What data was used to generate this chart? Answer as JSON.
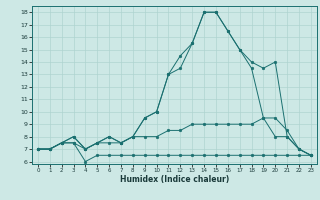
{
  "xlabel": "Humidex (Indice chaleur)",
  "xlim": [
    -0.5,
    23.5
  ],
  "ylim": [
    5.8,
    18.5
  ],
  "yticks": [
    6,
    7,
    8,
    9,
    10,
    11,
    12,
    13,
    14,
    15,
    16,
    17,
    18
  ],
  "xticks": [
    0,
    1,
    2,
    3,
    4,
    5,
    6,
    7,
    8,
    9,
    10,
    11,
    12,
    13,
    14,
    15,
    16,
    17,
    18,
    19,
    20,
    21,
    22,
    23
  ],
  "background_color": "#cde8e5",
  "line_color": "#1b7070",
  "grid_color": "#afd4d0",
  "line1_x": [
    0,
    1,
    2,
    3,
    4,
    5,
    6,
    7,
    8,
    9,
    10,
    11,
    12,
    13,
    14,
    15,
    16,
    17,
    18,
    19,
    20,
    21,
    22,
    23
  ],
  "line1_y": [
    7.0,
    7.0,
    7.5,
    7.5,
    6.0,
    6.5,
    6.5,
    6.5,
    6.5,
    6.5,
    6.5,
    6.5,
    6.5,
    6.5,
    6.5,
    6.5,
    6.5,
    6.5,
    6.5,
    6.5,
    6.5,
    6.5,
    6.5,
    6.5
  ],
  "line2_x": [
    0,
    1,
    2,
    3,
    4,
    5,
    6,
    7,
    8,
    9,
    10,
    11,
    12,
    13,
    14,
    15,
    16,
    17,
    18,
    19,
    20,
    21,
    22,
    23
  ],
  "line2_y": [
    7.0,
    7.0,
    7.5,
    7.5,
    7.0,
    7.5,
    7.5,
    7.5,
    8.0,
    8.0,
    8.0,
    8.5,
    8.5,
    9.0,
    9.0,
    9.0,
    9.0,
    9.0,
    9.0,
    9.5,
    9.5,
    8.5,
    7.0,
    6.5
  ],
  "line3_x": [
    0,
    1,
    2,
    3,
    4,
    5,
    6,
    7,
    8,
    9,
    10,
    11,
    12,
    13,
    14,
    15,
    16,
    17,
    18,
    19,
    20,
    21,
    22,
    23
  ],
  "line3_y": [
    7.0,
    7.0,
    7.5,
    8.0,
    7.0,
    7.5,
    8.0,
    7.5,
    8.0,
    9.5,
    10.0,
    13.0,
    13.5,
    15.5,
    18.0,
    18.0,
    16.5,
    15.0,
    14.0,
    13.5,
    14.0,
    8.0,
    7.0,
    6.5
  ],
  "line4_x": [
    0,
    1,
    2,
    3,
    4,
    5,
    6,
    7,
    8,
    9,
    10,
    11,
    12,
    13,
    14,
    15,
    16,
    17,
    18,
    19,
    20,
    21,
    22,
    23
  ],
  "line4_y": [
    7.0,
    7.0,
    7.5,
    8.0,
    7.0,
    7.5,
    8.0,
    7.5,
    8.0,
    9.5,
    10.0,
    13.0,
    14.5,
    15.5,
    18.0,
    18.0,
    16.5,
    15.0,
    13.5,
    9.5,
    8.0,
    8.0,
    7.0,
    6.5
  ]
}
